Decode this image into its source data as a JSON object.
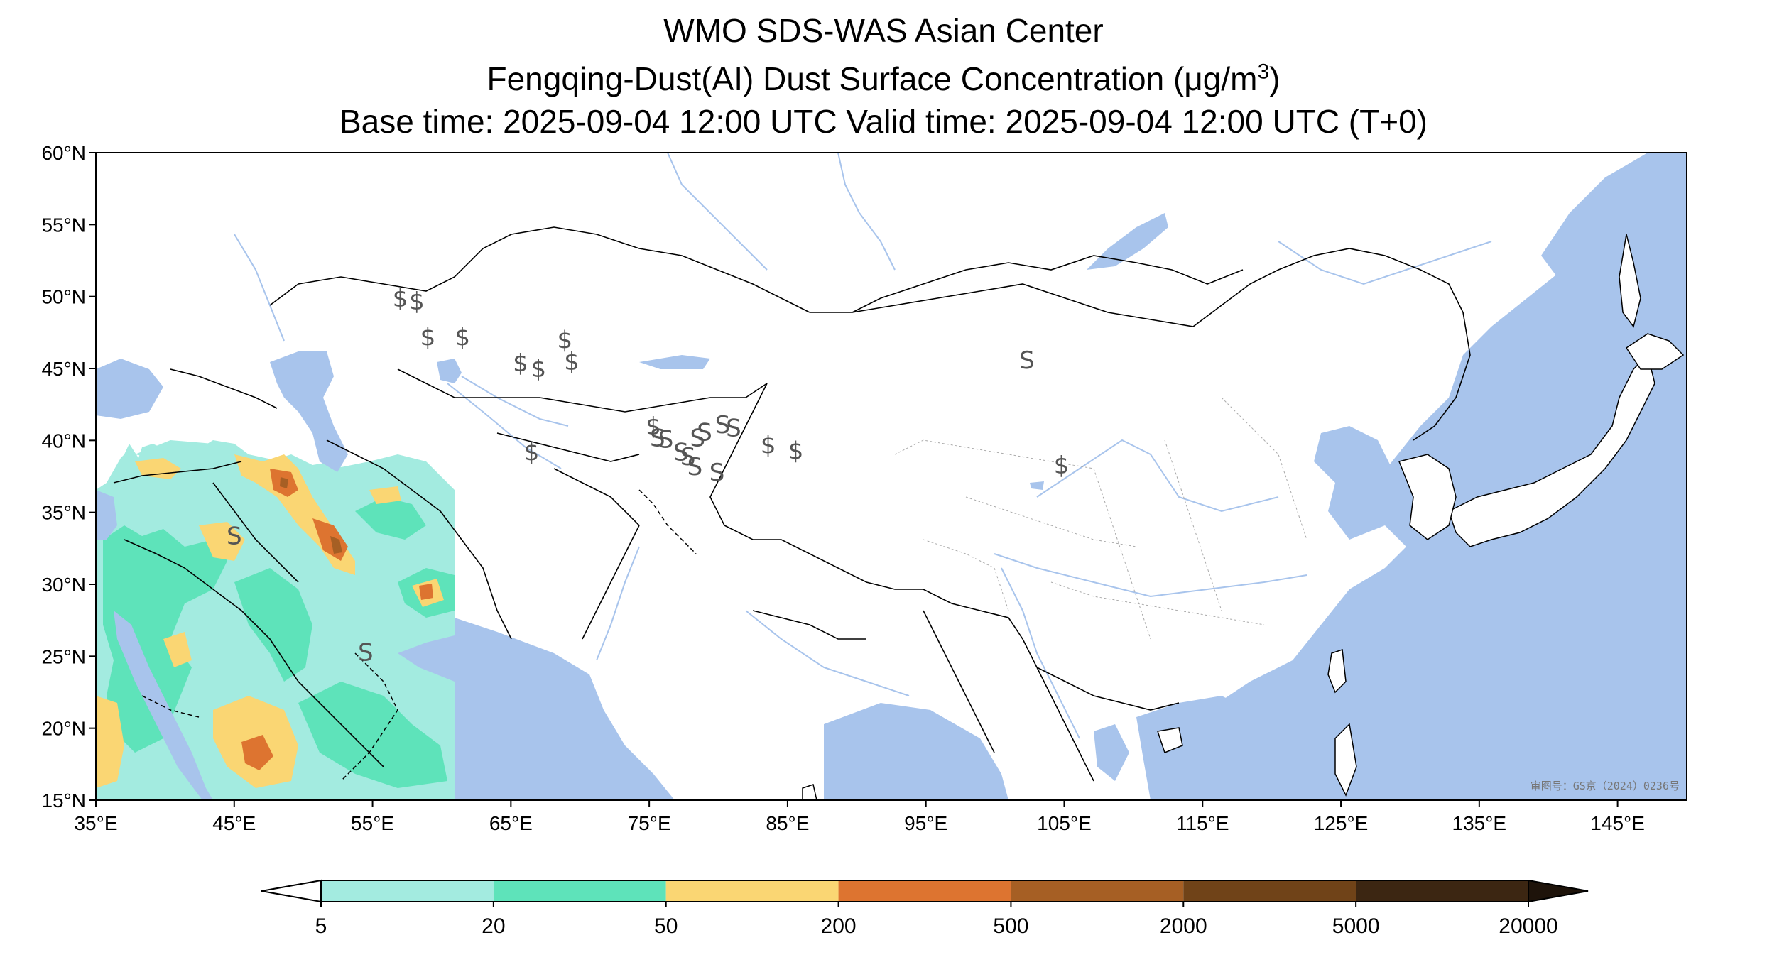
{
  "header": {
    "line1": "WMO SDS-WAS Asian Center",
    "line2_prefix": "Fengqing-Dust(AI) Dust Surface Concentration (",
    "line2_mu": "μ",
    "line2_unit": "g/m",
    "line2_sup": "3",
    "line2_suffix": ")",
    "line3": "Base time: 2025-09-04 12:00 UTC Valid time: 2025-09-04 12:00 UTC (T+0)"
  },
  "map": {
    "extent": {
      "lon": [
        35,
        150
      ],
      "lat": [
        15,
        60
      ]
    },
    "lat_ticks": [
      {
        "value": 60,
        "label": "60°N"
      },
      {
        "value": 55,
        "label": "55°N"
      },
      {
        "value": 50,
        "label": "50°N"
      },
      {
        "value": 45,
        "label": "45°N"
      },
      {
        "value": 40,
        "label": "40°N"
      },
      {
        "value": 35,
        "label": "35°N"
      },
      {
        "value": 30,
        "label": "30°N"
      },
      {
        "value": 25,
        "label": "25°N"
      },
      {
        "value": 20,
        "label": "20°N"
      },
      {
        "value": 15,
        "label": "15°N"
      }
    ],
    "lon_ticks": [
      {
        "value": 35,
        "label": "35°E"
      },
      {
        "value": 45,
        "label": "45°E"
      },
      {
        "value": 55,
        "label": "55°E"
      },
      {
        "value": 65,
        "label": "65°E"
      },
      {
        "value": 75,
        "label": "75°E"
      },
      {
        "value": 85,
        "label": "85°E"
      },
      {
        "value": 95,
        "label": "95°E"
      },
      {
        "value": 105,
        "label": "105°E"
      },
      {
        "value": 115,
        "label": "115°E"
      },
      {
        "value": 125,
        "label": "125°E"
      },
      {
        "value": 135,
        "label": "135°E"
      },
      {
        "value": 145,
        "label": "145°E"
      }
    ],
    "colors": {
      "ocean": "#a8c4ec",
      "land": "#ffffff",
      "border": "#000000",
      "river": "#a8c4ec"
    },
    "watermark": "审图号：GS京（2024）0236号",
    "weather_symbols": [
      {
        "symbol": "$",
        "lon": 57.0,
        "lat": 49.3
      },
      {
        "symbol": "$",
        "lon": 58.2,
        "lat": 49.1
      },
      {
        "symbol": "$",
        "lon": 59.0,
        "lat": 46.6
      },
      {
        "symbol": "$",
        "lon": 61.5,
        "lat": 46.6
      },
      {
        "symbol": "$",
        "lon": 65.7,
        "lat": 44.8
      },
      {
        "symbol": "$",
        "lon": 67.0,
        "lat": 44.4
      },
      {
        "symbol": "$",
        "lon": 68.9,
        "lat": 46.4
      },
      {
        "symbol": "$",
        "lon": 69.4,
        "lat": 44.9
      },
      {
        "symbol": "$",
        "lon": 66.5,
        "lat": 38.6
      },
      {
        "symbol": "$",
        "lon": 75.3,
        "lat": 40.4
      },
      {
        "symbol": "$",
        "lon": 83.6,
        "lat": 39.1
      },
      {
        "symbol": "$",
        "lon": 85.6,
        "lat": 38.7
      },
      {
        "symbol": "$",
        "lon": 104.8,
        "lat": 37.7
      },
      {
        "symbol": "S",
        "lon": 75.6,
        "lat": 39.6
      },
      {
        "symbol": "S",
        "lon": 76.2,
        "lat": 39.5
      },
      {
        "symbol": "S",
        "lon": 77.3,
        "lat": 38.6
      },
      {
        "symbol": "S",
        "lon": 77.8,
        "lat": 38.3
      },
      {
        "symbol": "S",
        "lon": 78.3,
        "lat": 37.6
      },
      {
        "symbol": "S",
        "lon": 78.5,
        "lat": 39.6
      },
      {
        "symbol": "S",
        "lon": 79.0,
        "lat": 40.0
      },
      {
        "symbol": "S",
        "lon": 79.9,
        "lat": 37.2
      },
      {
        "symbol": "S",
        "lon": 80.3,
        "lat": 40.5
      },
      {
        "symbol": "S",
        "lon": 81.1,
        "lat": 40.3
      },
      {
        "symbol": "S",
        "lon": 45.0,
        "lat": 32.8
      },
      {
        "symbol": "S",
        "lon": 54.5,
        "lat": 24.7
      },
      {
        "symbol": "S",
        "lon": 102.3,
        "lat": 45.0
      }
    ]
  },
  "colorbar": {
    "levels": [
      "5",
      "20",
      "50",
      "200",
      "500",
      "2000",
      "5000",
      "20000"
    ],
    "colors": [
      "#a3ebe0",
      "#5ee3ba",
      "#fad673",
      "#dd7430",
      "#a65f24",
      "#704318",
      "#3c2612"
    ],
    "under_color": "#ffffff",
    "over_color": "#1e130a"
  },
  "dust_field": {
    "levels": [
      "5",
      "20",
      "50",
      "200"
    ],
    "colors": [
      "#a3ebe0",
      "#5ee3ba",
      "#fad673",
      "#dd7430",
      "#a65f24"
    ]
  }
}
